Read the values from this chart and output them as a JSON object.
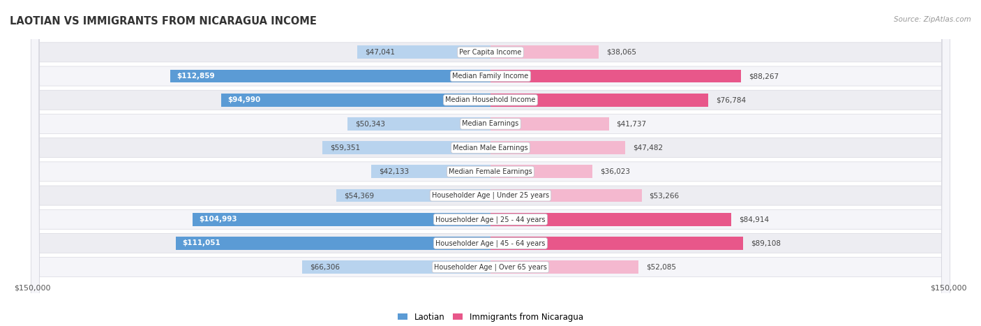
{
  "title": "LAOTIAN VS IMMIGRANTS FROM NICARAGUA INCOME",
  "source": "Source: ZipAtlas.com",
  "categories": [
    "Per Capita Income",
    "Median Family Income",
    "Median Household Income",
    "Median Earnings",
    "Median Male Earnings",
    "Median Female Earnings",
    "Householder Age | Under 25 years",
    "Householder Age | 25 - 44 years",
    "Householder Age | 45 - 64 years",
    "Householder Age | Over 65 years"
  ],
  "laotian_values": [
    47041,
    112859,
    94990,
    50343,
    59351,
    42133,
    54369,
    104993,
    111051,
    66306
  ],
  "nicaragua_values": [
    38065,
    88267,
    76784,
    41737,
    47482,
    36023,
    53266,
    84914,
    89108,
    52085
  ],
  "laotian_labels": [
    "$47,041",
    "$112,859",
    "$94,990",
    "$50,343",
    "$59,351",
    "$42,133",
    "$54,369",
    "$104,993",
    "$111,051",
    "$66,306"
  ],
  "nicaragua_labels": [
    "$38,065",
    "$88,267",
    "$76,784",
    "$41,737",
    "$47,482",
    "$36,023",
    "$53,266",
    "$84,914",
    "$89,108",
    "$52,085"
  ],
  "laotian_strong_threshold": 80000,
  "nicaragua_strong_threshold": 70000,
  "laotian_color_strong": "#5b9bd5",
  "laotian_color_light": "#b8d3ee",
  "nicaragua_color_strong": "#e8578a",
  "nicaragua_color_light": "#f4b8cf",
  "max_value": 150000,
  "bg_color": "#ffffff",
  "row_bg_even": "#ededf2",
  "row_bg_odd": "#f5f5f9",
  "legend_laotian": "Laotian",
  "legend_nicaragua": "Immigrants from Nicaragua",
  "x_label_left": "$150,000",
  "x_label_right": "$150,000"
}
